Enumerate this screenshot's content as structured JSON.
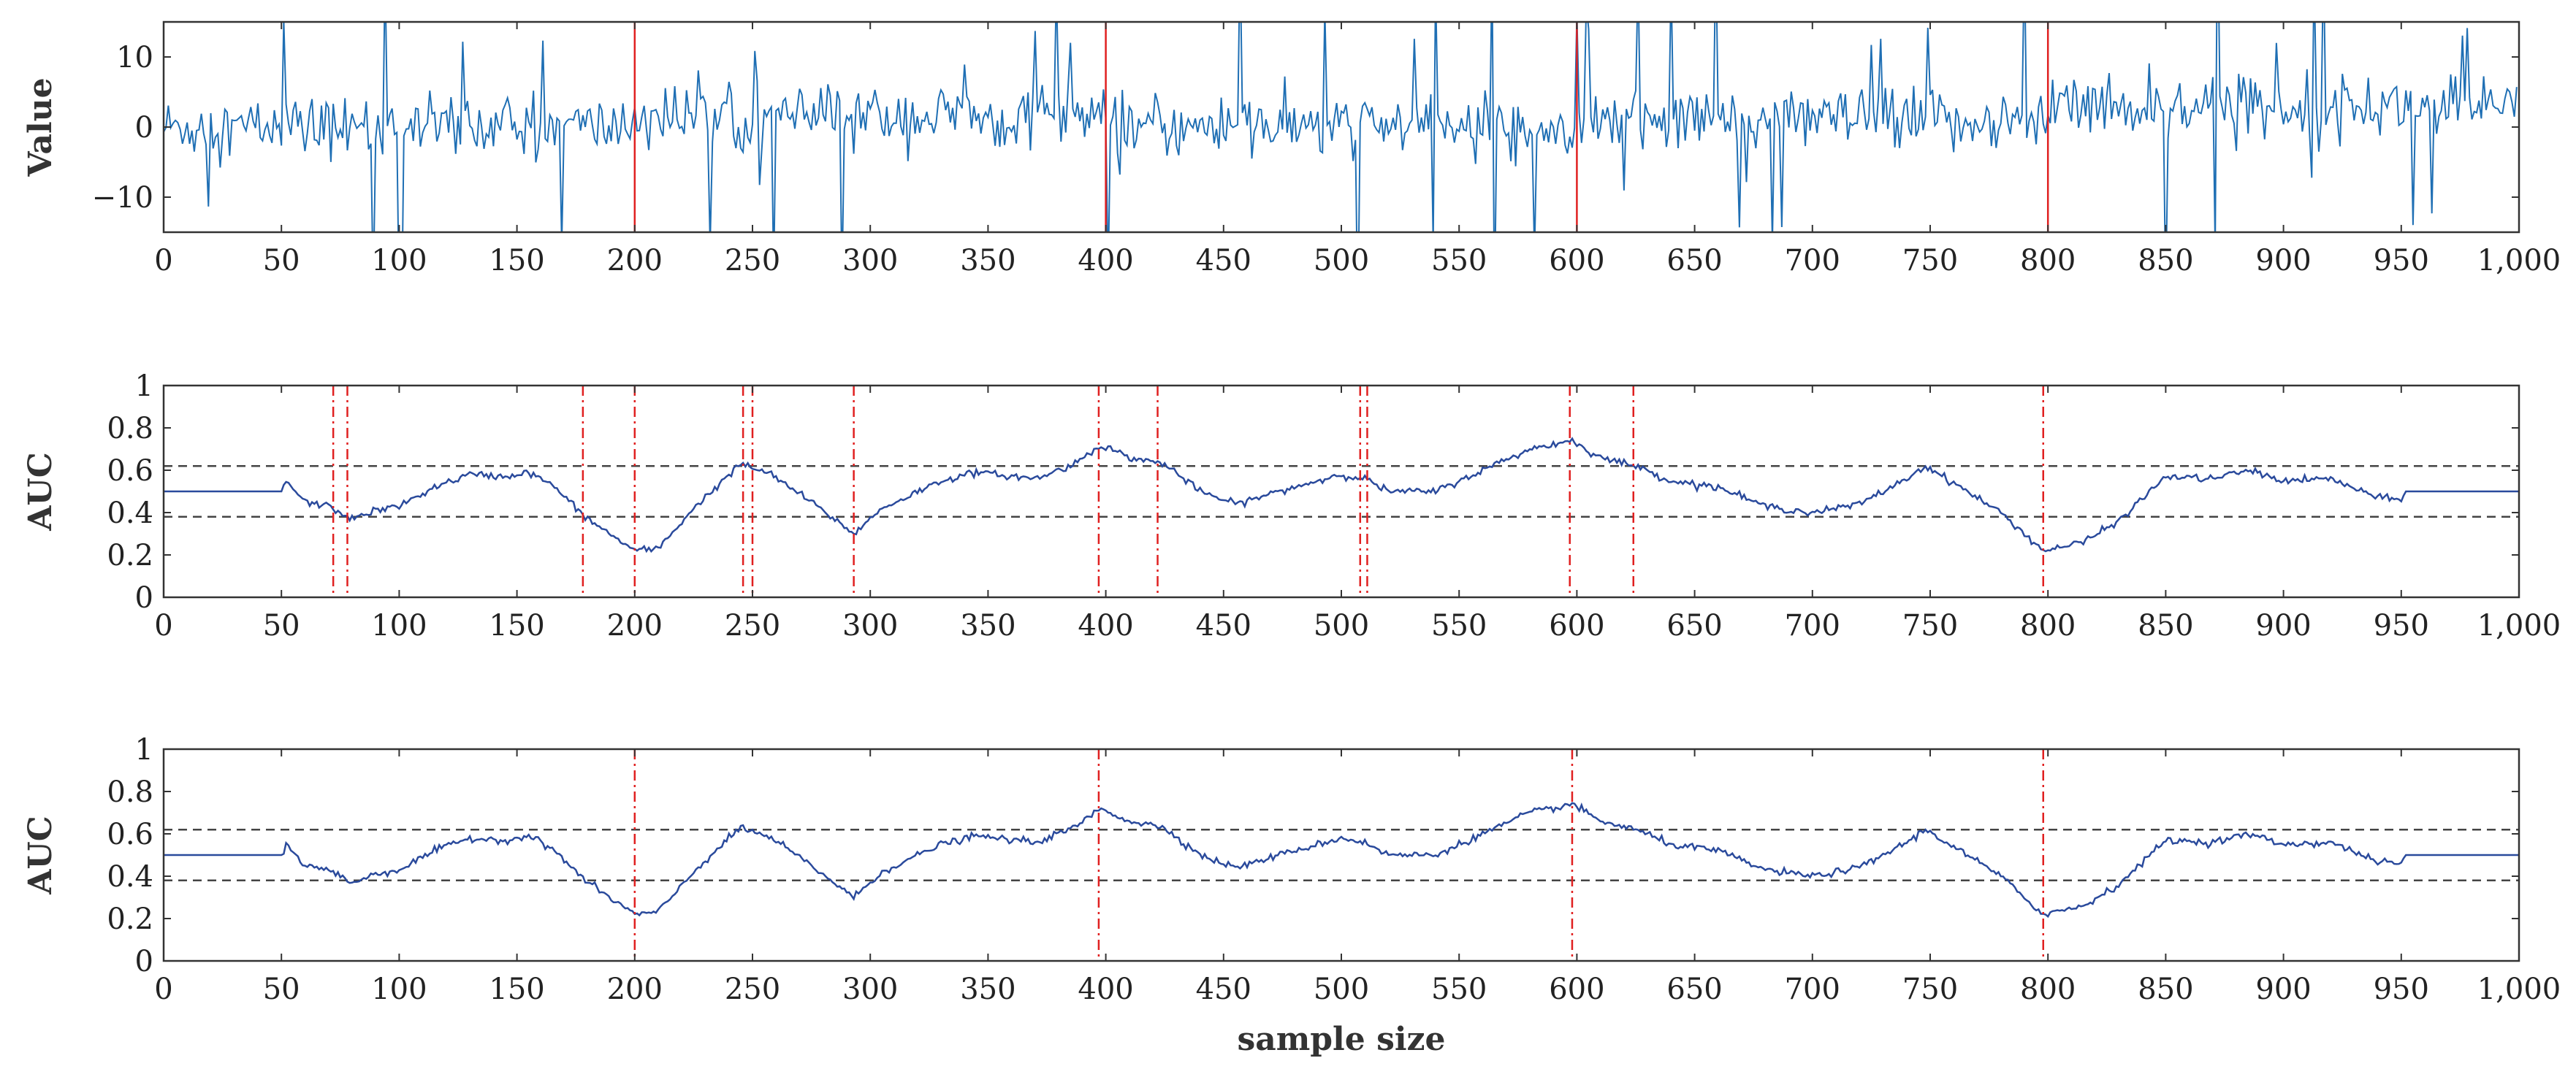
{
  "chart_data": [
    {
      "type": "line",
      "id": "signal",
      "ylabel": "Value",
      "xlim": [
        0,
        1000
      ],
      "ylim": [
        -15,
        15
      ],
      "xticks": [
        0,
        50,
        100,
        150,
        200,
        250,
        300,
        350,
        400,
        450,
        500,
        550,
        600,
        650,
        700,
        750,
        800,
        850,
        900,
        950,
        1000
      ],
      "xtick_labels": [
        "0",
        "50",
        "100",
        "150",
        "200",
        "250",
        "300",
        "350",
        "400",
        "450",
        "500",
        "550",
        "600",
        "650",
        "700",
        "750",
        "800",
        "850",
        "900",
        "950",
        "1,000"
      ],
      "yticks": [
        -10,
        0,
        10
      ],
      "ytick_labels": [
        "−10",
        "0",
        "10"
      ],
      "true_change_points": [
        200,
        400,
        600,
        800
      ],
      "series": [
        {
          "name": "signal",
          "n": 1000,
          "segment_means": [
            0,
            1.5,
            0,
            1,
            3,
            0.5
          ],
          "segment_bounds": [
            0,
            200,
            400,
            600,
            800,
            1000
          ]
        }
      ]
    },
    {
      "type": "line",
      "id": "auc-a",
      "ylabel": "AUC",
      "xlim": [
        0,
        1000
      ],
      "ylim": [
        0,
        1
      ],
      "xticks": [
        0,
        50,
        100,
        150,
        200,
        250,
        300,
        350,
        400,
        450,
        500,
        550,
        600,
        650,
        700,
        750,
        800,
        850,
        900,
        950,
        1000
      ],
      "xtick_labels": [
        "0",
        "50",
        "100",
        "150",
        "200",
        "250",
        "300",
        "350",
        "400",
        "450",
        "500",
        "550",
        "600",
        "650",
        "700",
        "750",
        "800",
        "850",
        "900",
        "950",
        "1,000"
      ],
      "yticks": [
        0,
        0.2,
        0.4,
        0.6,
        0.8,
        1
      ],
      "ytick_labels": [
        "0",
        "0.2",
        "0.4",
        "0.6",
        "0.8",
        "1"
      ],
      "thresholds": [
        0.62,
        0.38
      ],
      "detected_change_points": [
        72,
        78,
        178,
        200,
        246,
        250,
        293,
        397,
        422,
        508,
        511,
        597,
        624,
        798
      ],
      "series": [
        {
          "name": "AUC",
          "x": [
            0,
            50,
            52,
            60,
            70,
            80,
            90,
            100,
            115,
            130,
            145,
            155,
            165,
            180,
            200,
            210,
            225,
            245,
            258,
            275,
            293,
            305,
            330,
            345,
            370,
            385,
            398,
            410,
            425,
            440,
            455,
            480,
            500,
            510,
            520,
            540,
            560,
            580,
            598,
            610,
            625,
            640,
            660,
            680,
            700,
            720,
            740,
            748,
            760,
            780,
            798,
            815,
            830,
            850,
            870,
            885,
            900,
            920,
            940,
            950,
            952,
            1000
          ],
          "y": [
            0.5,
            0.5,
            0.55,
            0.45,
            0.43,
            0.37,
            0.41,
            0.43,
            0.52,
            0.58,
            0.57,
            0.59,
            0.53,
            0.37,
            0.22,
            0.23,
            0.42,
            0.63,
            0.58,
            0.45,
            0.3,
            0.42,
            0.55,
            0.59,
            0.56,
            0.62,
            0.72,
            0.66,
            0.63,
            0.5,
            0.44,
            0.52,
            0.58,
            0.56,
            0.5,
            0.5,
            0.6,
            0.7,
            0.74,
            0.66,
            0.62,
            0.55,
            0.52,
            0.43,
            0.4,
            0.44,
            0.56,
            0.62,
            0.54,
            0.4,
            0.22,
            0.26,
            0.36,
            0.57,
            0.56,
            0.6,
            0.55,
            0.56,
            0.47,
            0.46,
            0.5,
            0.5
          ]
        }
      ]
    },
    {
      "type": "line",
      "id": "auc-b",
      "ylabel": "AUC",
      "xlabel": "sample size",
      "xlim": [
        0,
        1000
      ],
      "ylim": [
        0,
        1
      ],
      "xticks": [
        0,
        50,
        100,
        150,
        200,
        250,
        300,
        350,
        400,
        450,
        500,
        550,
        600,
        650,
        700,
        750,
        800,
        850,
        900,
        950,
        1000
      ],
      "xtick_labels": [
        "0",
        "50",
        "100",
        "150",
        "200",
        "250",
        "300",
        "350",
        "400",
        "450",
        "500",
        "550",
        "600",
        "650",
        "700",
        "750",
        "800",
        "850",
        "900",
        "950",
        "1,000"
      ],
      "yticks": [
        0,
        0.2,
        0.4,
        0.6,
        0.8,
        1
      ],
      "ytick_labels": [
        "0",
        "0.2",
        "0.4",
        "0.6",
        "0.8",
        "1"
      ],
      "thresholds": [
        0.62,
        0.38
      ],
      "detected_change_points": [
        200,
        397,
        598,
        798
      ],
      "series": [
        {
          "name": "AUC",
          "x": [
            0,
            50,
            52,
            60,
            70,
            80,
            90,
            100,
            115,
            130,
            145,
            155,
            165,
            180,
            200,
            210,
            225,
            245,
            258,
            275,
            293,
            305,
            330,
            345,
            370,
            385,
            398,
            410,
            425,
            440,
            455,
            480,
            500,
            510,
            520,
            540,
            560,
            580,
            598,
            610,
            625,
            640,
            660,
            680,
            700,
            720,
            740,
            748,
            760,
            780,
            798,
            815,
            830,
            850,
            870,
            885,
            900,
            920,
            940,
            950,
            952,
            1000
          ],
          "y": [
            0.5,
            0.5,
            0.55,
            0.45,
            0.43,
            0.37,
            0.41,
            0.43,
            0.52,
            0.58,
            0.57,
            0.59,
            0.53,
            0.37,
            0.22,
            0.23,
            0.42,
            0.63,
            0.58,
            0.45,
            0.3,
            0.42,
            0.55,
            0.59,
            0.56,
            0.62,
            0.72,
            0.66,
            0.63,
            0.5,
            0.44,
            0.52,
            0.58,
            0.56,
            0.5,
            0.5,
            0.6,
            0.7,
            0.74,
            0.66,
            0.62,
            0.55,
            0.52,
            0.43,
            0.4,
            0.44,
            0.56,
            0.62,
            0.54,
            0.4,
            0.22,
            0.26,
            0.36,
            0.57,
            0.56,
            0.6,
            0.55,
            0.56,
            0.47,
            0.46,
            0.5,
            0.5
          ]
        }
      ]
    }
  ]
}
